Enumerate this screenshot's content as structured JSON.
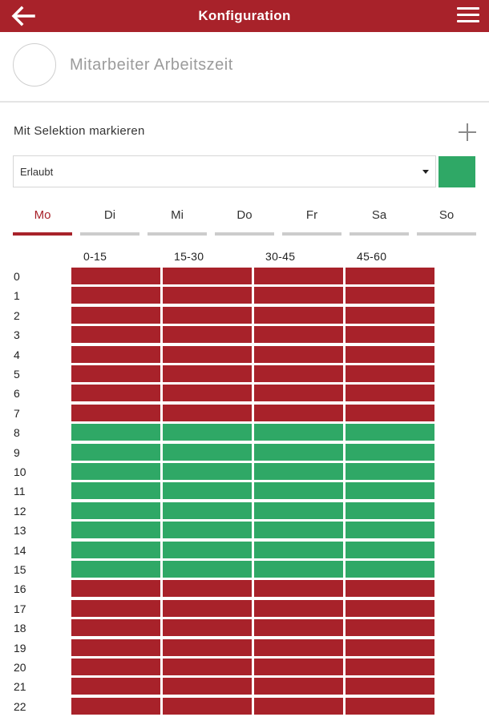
{
  "appbar": {
    "title": "Konfiguration",
    "back_icon": "arrow-left-icon",
    "menu_icon": "hamburger-menu-icon",
    "background_color": "#a8222a"
  },
  "profile": {
    "name": "Mitarbeiter Arbeitszeit"
  },
  "selection": {
    "label": "Mit Selektion markieren",
    "add_icon": "plus-icon",
    "selected_value": "Erlaubt",
    "swatch_color": "#2fa866"
  },
  "days": [
    {
      "label": "Mo",
      "active": true
    },
    {
      "label": "Di",
      "active": false
    },
    {
      "label": "Mi",
      "active": false
    },
    {
      "label": "Do",
      "active": false
    },
    {
      "label": "Fr",
      "active": false
    },
    {
      "label": "Sa",
      "active": false
    },
    {
      "label": "So",
      "active": false
    }
  ],
  "grid": {
    "columns": [
      "0-15",
      "15-30",
      "30-45",
      "45-60"
    ],
    "hours": [
      "0",
      "1",
      "2",
      "3",
      "4",
      "5",
      "6",
      "7",
      "8",
      "9",
      "10",
      "11",
      "12",
      "13",
      "14",
      "15",
      "16",
      "17",
      "18",
      "19",
      "20",
      "21",
      "22"
    ],
    "allowed_hours": [
      8,
      9,
      10,
      11,
      12,
      13,
      14,
      15
    ],
    "colors": {
      "allowed": "#2fa866",
      "forbidden": "#a8222a"
    }
  }
}
